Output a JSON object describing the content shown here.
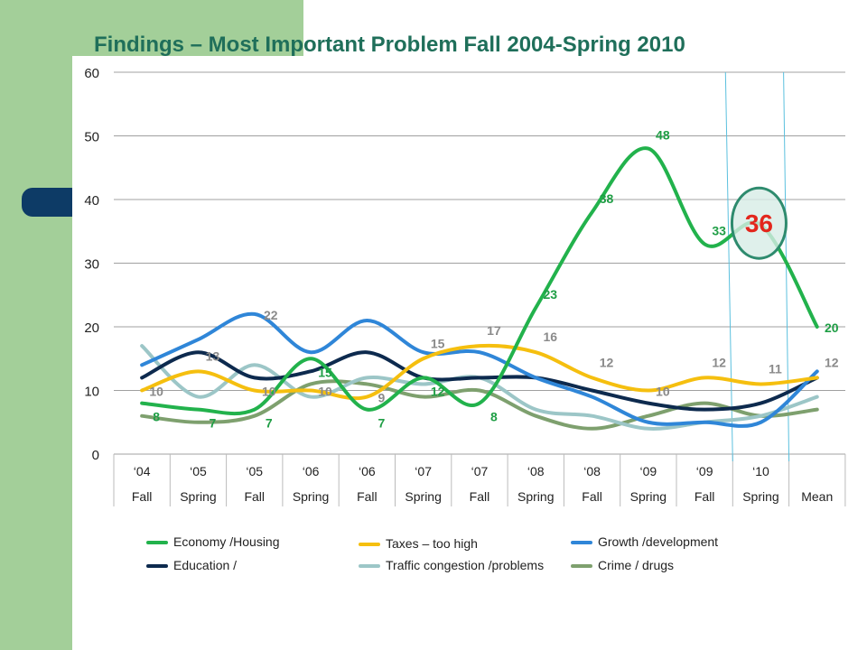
{
  "page": {
    "title": "Findings – Most Important Problem Fall 2004-Spring 2010"
  },
  "chart_data": {
    "type": "line",
    "ylim": [
      0,
      60
    ],
    "yticks": [
      "0",
      "10",
      "20",
      "30",
      "40",
      "50",
      "60"
    ],
    "categories_top": [
      "‘04",
      "‘05",
      "‘05",
      "‘06",
      "‘06",
      "‘07",
      "‘07",
      "‘08",
      "‘08",
      "‘09",
      "‘09",
      "‘10",
      ""
    ],
    "categories_bottom": [
      "Fall",
      "Spring",
      "Fall",
      "Spring",
      "Fall",
      "Spring",
      "Fall",
      "Spring",
      "Fall",
      "Spring",
      "Fall",
      "Spring",
      "Mean"
    ],
    "series": [
      {
        "name": "Economy /Housing",
        "color": "#22b24c",
        "values": [
          8,
          7,
          7,
          15,
          7,
          12,
          8,
          23,
          38,
          48,
          33,
          36,
          20
        ],
        "labels": [
          "8",
          "7",
          "7",
          "15",
          "7",
          "12",
          "8",
          "23",
          "38",
          "48",
          "33",
          "",
          "20"
        ]
      },
      {
        "name": "Taxes – too high",
        "color": "#f5bf0f",
        "values": [
          10,
          13,
          10,
          10,
          9,
          15,
          17,
          16,
          12,
          10,
          12,
          11,
          12
        ],
        "labels": [
          "10",
          "13",
          "10",
          "10",
          "9",
          "15",
          "17",
          "16",
          "12",
          "10",
          "12",
          "11",
          "12"
        ]
      },
      {
        "name": "Growth /development",
        "color": "#2f86d8",
        "values": [
          14,
          18,
          22,
          16,
          21,
          16,
          16,
          12,
          9,
          5,
          5,
          5,
          13
        ],
        "labels": [
          "",
          "",
          "22",
          "",
          "",
          "",
          "",
          "",
          "",
          "",
          "",
          "",
          ""
        ]
      },
      {
        "name": "Education /",
        "color": "#0d2a4e",
        "values": [
          12,
          16,
          12,
          13,
          16,
          12,
          12,
          12,
          10,
          8,
          7,
          8,
          12
        ],
        "labels": []
      },
      {
        "name": "Traffic congestion /problems",
        "color": "#9cc6c7",
        "values": [
          17,
          9,
          14,
          9,
          12,
          11,
          12,
          7,
          6,
          4,
          5,
          6,
          9
        ],
        "labels": []
      },
      {
        "name": "Crime / drugs",
        "color": "#7ea06e",
        "values": [
          6,
          5,
          6,
          11,
          11,
          9,
          10,
          6,
          4,
          6,
          8,
          6,
          7
        ],
        "labels": []
      }
    ],
    "annotation": {
      "text": "36",
      "color": "#e3261c",
      "ring_color": "#2e8b6e",
      "ring_fill": "#d7ece6"
    },
    "legend": {
      "placement": "bottom",
      "columns": 3
    }
  }
}
